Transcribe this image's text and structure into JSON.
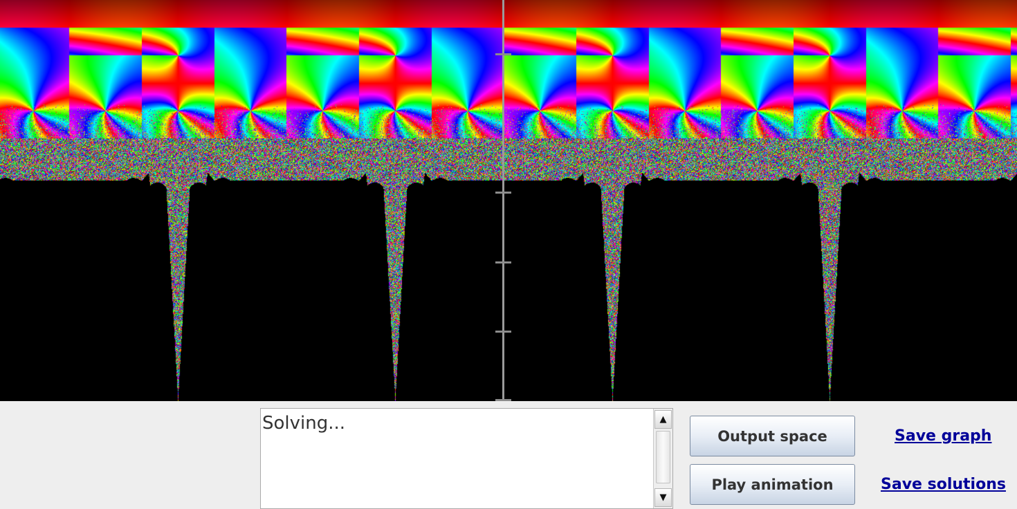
{
  "plot": {
    "vertical_axis_color": "#9a9a9a",
    "background": "#000000"
  },
  "log": {
    "text": "Solving..."
  },
  "scrollbar": {
    "up_icon": "▲",
    "down_icon": "▼"
  },
  "buttons": {
    "output_space": "Output space",
    "play_animation": "Play animation"
  },
  "links": {
    "save_graph": "Save graph",
    "save_solutions": "Save solutions",
    "color": "#000099"
  }
}
